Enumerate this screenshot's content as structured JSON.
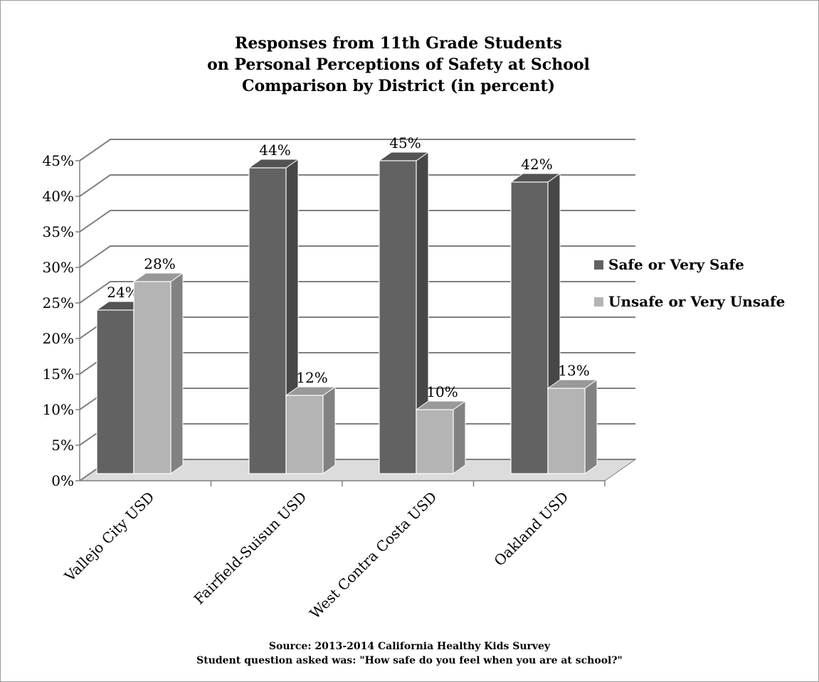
{
  "chart_data": {
    "type": "bar",
    "title_lines": [
      "Responses from 11th Grade Students",
      "on Personal Perceptions of Safety at School",
      "Comparison by District (in percent)"
    ],
    "categories": [
      "Vallejo City USD",
      "Fairfield-Suisun USD",
      "West Contra Costa USD",
      "Oakland USD"
    ],
    "series": [
      {
        "name": "Safe or Very Safe",
        "values": [
          24,
          44,
          45,
          42
        ],
        "labels": [
          "24%",
          "44%",
          "45%",
          "42%"
        ],
        "color": "#626262"
      },
      {
        "name": "Unsafe or Very Unsafe",
        "values": [
          28,
          12,
          10,
          13
        ],
        "labels": [
          "28%",
          "12%",
          "10%",
          "13%"
        ],
        "color": "#b4b4b4"
      }
    ],
    "ylim": [
      0,
      45
    ],
    "yticks": [
      0,
      5,
      10,
      15,
      20,
      25,
      30,
      35,
      40,
      45
    ],
    "ytick_labels": [
      "0%",
      "5%",
      "10%",
      "15%",
      "20%",
      "25%",
      "30%",
      "35%",
      "40%",
      "45%"
    ],
    "grid": true,
    "three_d": true,
    "legend_position": "right"
  },
  "source": {
    "line1": "Source:  2013-2014 California Healthy Kids Survey",
    "line2": "Student question asked was: \"How safe do you feel when you are at school?\""
  }
}
